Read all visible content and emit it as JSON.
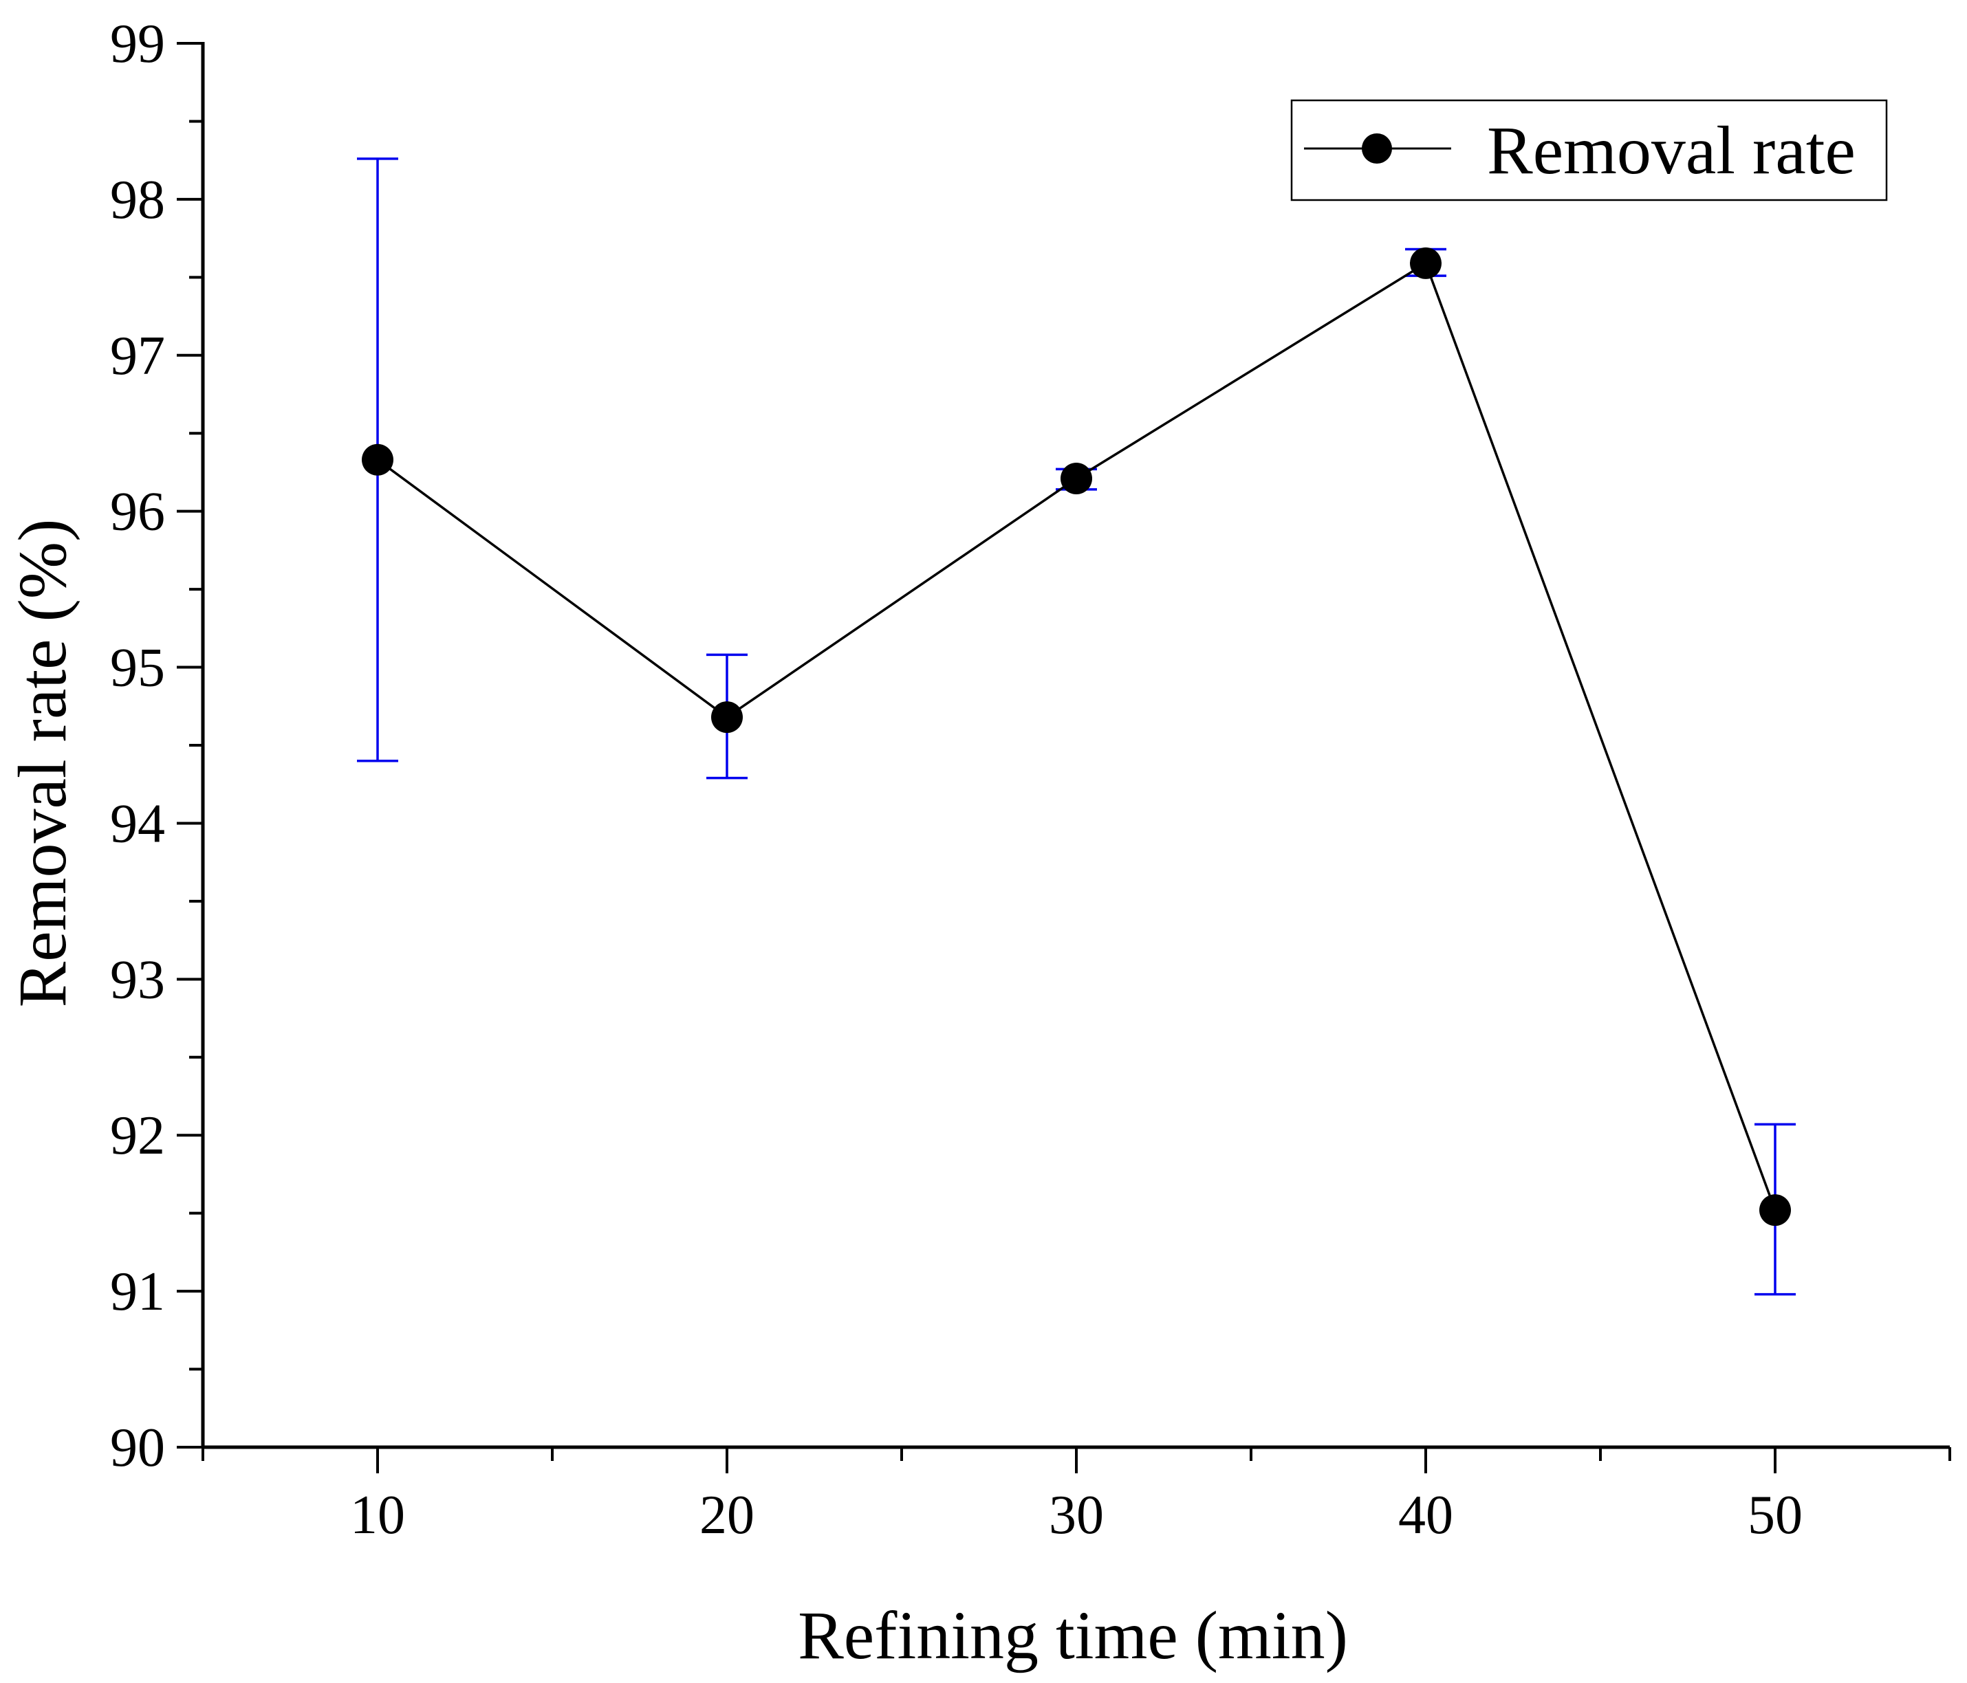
{
  "chart_data": {
    "type": "line",
    "title": "",
    "xlabel": "Refining time (min)",
    "ylabel": "Removal rate (%)",
    "xlim": [
      5,
      55
    ],
    "ylim": [
      90,
      99
    ],
    "xticks": [
      10,
      20,
      30,
      40,
      50
    ],
    "xtick_labels": [
      "10",
      "20",
      "30",
      "40",
      "50"
    ],
    "yticks": [
      90,
      91,
      92,
      93,
      94,
      95,
      96,
      97,
      98,
      99
    ],
    "ytick_labels": [
      "90",
      "91",
      "92",
      "93",
      "94",
      "95",
      "96",
      "97",
      "98",
      "99"
    ],
    "legend_position": "top-right",
    "grid": false,
    "series": [
      {
        "name": "Removal rate",
        "x": [
          10,
          20,
          30,
          40,
          50
        ],
        "y": [
          96.33,
          94.68,
          96.21,
          97.59,
          91.52
        ],
        "error_low": [
          94.4,
          94.29,
          96.14,
          97.51,
          90.98
        ],
        "error_high": [
          98.26,
          95.08,
          96.27,
          97.68,
          92.07
        ],
        "line_color": "#000000",
        "marker_color": "#000000",
        "error_color": "#0000ee"
      }
    ]
  }
}
